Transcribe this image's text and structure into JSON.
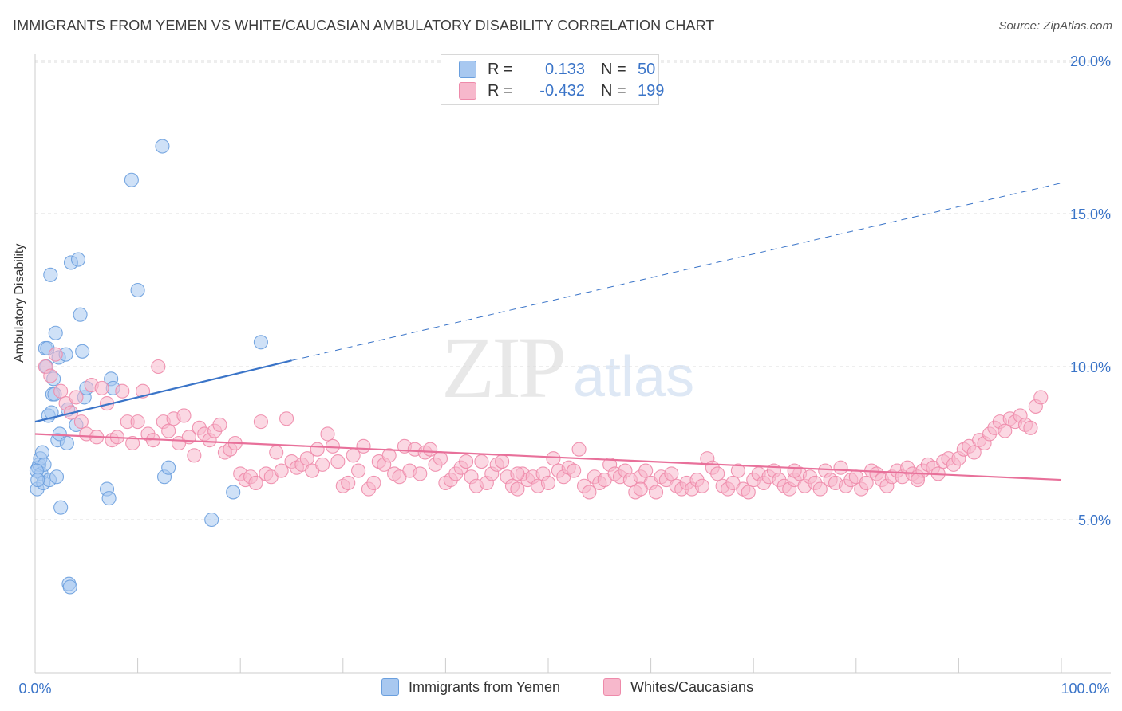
{
  "header": {
    "title": "IMMIGRANTS FROM YEMEN VS WHITE/CAUCASIAN AMBULATORY DISABILITY CORRELATION CHART",
    "source": "Source: ZipAtlas.com"
  },
  "watermark": {
    "zip": "ZIP",
    "atlas": "atlas"
  },
  "legend": {
    "rows": [
      {
        "r_label": "R =",
        "r_value": "0.133",
        "n_label": "N =",
        "n_value": "50",
        "color": "#a8c8f0"
      },
      {
        "r_label": "R =",
        "r_value": "-0.432",
        "n_label": "N =",
        "n_value": "199",
        "color": "#f7b8cc"
      }
    ]
  },
  "bottom_legend": {
    "items": [
      {
        "label": "Immigrants from Yemen",
        "color": "#a8c8f0"
      },
      {
        "label": "Whites/Caucasians",
        "color": "#f7b8cc"
      }
    ]
  },
  "chart_data": {
    "type": "scatter",
    "title": "IMMIGRANTS FROM YEMEN VS WHITE/CAUCASIAN AMBULATORY DISABILITY CORRELATION CHART",
    "xlabel": "",
    "ylabel": "Ambulatory Disability",
    "xlim": [
      0,
      100
    ],
    "ylim": [
      0,
      21
    ],
    "x_tick_labels": [
      "0.0%",
      "100.0%"
    ],
    "y_ticks": [
      5,
      10,
      15,
      20
    ],
    "y_tick_labels": [
      "5.0%",
      "10.0%",
      "15.0%",
      "20.0%"
    ],
    "grid": true,
    "legend_position": "top-center",
    "series": [
      {
        "name": "Immigrants from Yemen",
        "color": "#6a9fde",
        "fill": "#a8c8f0",
        "trend": {
          "x0": 0,
          "y0": 8.2,
          "x1": 25,
          "y1": 10.2,
          "dashed_to_x": 100,
          "dashed_to_y": 16.0,
          "color": "#3a74c8"
        },
        "points": [
          [
            0.2,
            6.0
          ],
          [
            0.3,
            6.7
          ],
          [
            0.4,
            6.8
          ],
          [
            0.5,
            7.0
          ],
          [
            0.6,
            6.5
          ],
          [
            0.7,
            7.2
          ],
          [
            0.8,
            6.2
          ],
          [
            0.9,
            6.8
          ],
          [
            1.0,
            10.6
          ],
          [
            1.1,
            10.0
          ],
          [
            1.2,
            10.6
          ],
          [
            1.3,
            8.4
          ],
          [
            1.4,
            6.3
          ],
          [
            1.5,
            13.0
          ],
          [
            1.6,
            8.5
          ],
          [
            1.7,
            9.1
          ],
          [
            1.8,
            9.6
          ],
          [
            1.9,
            9.1
          ],
          [
            2.0,
            11.1
          ],
          [
            2.1,
            6.4
          ],
          [
            2.2,
            7.6
          ],
          [
            2.3,
            10.3
          ],
          [
            2.4,
            7.8
          ],
          [
            2.5,
            5.4
          ],
          [
            3.0,
            10.4
          ],
          [
            3.1,
            7.5
          ],
          [
            3.2,
            8.6
          ],
          [
            3.3,
            2.9
          ],
          [
            3.4,
            2.8
          ],
          [
            3.5,
            13.4
          ],
          [
            4.0,
            8.1
          ],
          [
            4.2,
            13.5
          ],
          [
            4.4,
            11.7
          ],
          [
            4.6,
            10.5
          ],
          [
            4.8,
            9.0
          ],
          [
            5.0,
            9.3
          ],
          [
            7.0,
            6.0
          ],
          [
            7.2,
            5.7
          ],
          [
            7.4,
            9.6
          ],
          [
            7.6,
            9.3
          ],
          [
            9.4,
            16.1
          ],
          [
            10.0,
            12.5
          ],
          [
            12.4,
            17.2
          ],
          [
            12.6,
            6.4
          ],
          [
            13.0,
            6.7
          ],
          [
            17.2,
            5.0
          ],
          [
            19.3,
            5.9
          ],
          [
            22.0,
            10.8
          ],
          [
            0.15,
            6.6
          ],
          [
            0.25,
            6.3
          ]
        ]
      },
      {
        "name": "Whites/Caucasians",
        "color": "#ee8aaa",
        "fill": "#f7b8cc",
        "trend": {
          "x0": 0,
          "y0": 7.8,
          "x1": 100,
          "y1": 6.3,
          "color": "#e8709a"
        },
        "points": [
          [
            1.0,
            10.0
          ],
          [
            1.5,
            9.7
          ],
          [
            2.0,
            10.4
          ],
          [
            2.5,
            9.2
          ],
          [
            3.0,
            8.8
          ],
          [
            3.5,
            8.5
          ],
          [
            4.0,
            9.0
          ],
          [
            4.5,
            8.2
          ],
          [
            5.0,
            7.8
          ],
          [
            5.5,
            9.4
          ],
          [
            6.0,
            7.7
          ],
          [
            6.5,
            9.3
          ],
          [
            7.0,
            8.8
          ],
          [
            7.5,
            7.6
          ],
          [
            8.0,
            7.7
          ],
          [
            8.5,
            9.2
          ],
          [
            9.0,
            8.2
          ],
          [
            9.5,
            7.5
          ],
          [
            10.0,
            8.2
          ],
          [
            10.5,
            9.2
          ],
          [
            11.0,
            7.8
          ],
          [
            11.5,
            7.6
          ],
          [
            12.0,
            10.0
          ],
          [
            12.5,
            8.2
          ],
          [
            13.0,
            7.9
          ],
          [
            13.5,
            8.3
          ],
          [
            14.0,
            7.5
          ],
          [
            14.5,
            8.4
          ],
          [
            15.0,
            7.7
          ],
          [
            15.5,
            7.1
          ],
          [
            16.0,
            8.0
          ],
          [
            16.5,
            7.8
          ],
          [
            17.0,
            7.6
          ],
          [
            17.5,
            7.9
          ],
          [
            18.0,
            8.1
          ],
          [
            18.5,
            7.2
          ],
          [
            19.0,
            7.3
          ],
          [
            19.5,
            7.5
          ],
          [
            20.0,
            6.5
          ],
          [
            20.5,
            6.3
          ],
          [
            21.0,
            6.4
          ],
          [
            21.5,
            6.2
          ],
          [
            22.0,
            8.2
          ],
          [
            22.5,
            6.5
          ],
          [
            23.0,
            6.4
          ],
          [
            23.5,
            7.2
          ],
          [
            24.0,
            6.6
          ],
          [
            24.5,
            8.3
          ],
          [
            25.0,
            6.9
          ],
          [
            25.5,
            6.7
          ],
          [
            26.0,
            6.8
          ],
          [
            26.5,
            7.0
          ],
          [
            27.0,
            6.6
          ],
          [
            27.5,
            7.3
          ],
          [
            28.0,
            6.8
          ],
          [
            28.5,
            7.8
          ],
          [
            29.0,
            7.4
          ],
          [
            29.5,
            6.9
          ],
          [
            30.0,
            6.1
          ],
          [
            30.5,
            6.2
          ],
          [
            31.0,
            7.1
          ],
          [
            31.5,
            6.6
          ],
          [
            32.0,
            7.4
          ],
          [
            32.5,
            6.0
          ],
          [
            33.0,
            6.2
          ],
          [
            33.5,
            6.9
          ],
          [
            34.0,
            6.8
          ],
          [
            34.5,
            7.1
          ],
          [
            35.0,
            6.5
          ],
          [
            35.5,
            6.4
          ],
          [
            36.0,
            7.4
          ],
          [
            36.5,
            6.6
          ],
          [
            37.0,
            7.3
          ],
          [
            37.5,
            6.5
          ],
          [
            38.0,
            7.2
          ],
          [
            38.5,
            7.3
          ],
          [
            39.0,
            6.8
          ],
          [
            39.5,
            7.0
          ],
          [
            40.0,
            6.2
          ],
          [
            40.5,
            6.3
          ],
          [
            41.0,
            6.5
          ],
          [
            41.5,
            6.7
          ],
          [
            42.0,
            6.9
          ],
          [
            42.5,
            6.4
          ],
          [
            43.0,
            6.1
          ],
          [
            43.5,
            6.9
          ],
          [
            44.0,
            6.2
          ],
          [
            44.5,
            6.5
          ],
          [
            45.0,
            6.8
          ],
          [
            45.5,
            6.9
          ],
          [
            46.0,
            6.4
          ],
          [
            46.5,
            6.1
          ],
          [
            47.0,
            6.0
          ],
          [
            47.5,
            6.5
          ],
          [
            48.0,
            6.3
          ],
          [
            48.5,
            6.4
          ],
          [
            49.0,
            6.1
          ],
          [
            49.5,
            6.5
          ],
          [
            50.0,
            6.2
          ],
          [
            50.5,
            7.0
          ],
          [
            51.0,
            6.6
          ],
          [
            51.5,
            6.4
          ],
          [
            52.0,
            6.7
          ],
          [
            52.5,
            6.6
          ],
          [
            53.0,
            7.3
          ],
          [
            53.5,
            6.1
          ],
          [
            54.0,
            5.9
          ],
          [
            54.5,
            6.4
          ],
          [
            55.0,
            6.2
          ],
          [
            55.5,
            6.3
          ],
          [
            56.0,
            6.8
          ],
          [
            56.5,
            6.5
          ],
          [
            57.0,
            6.4
          ],
          [
            57.5,
            6.6
          ],
          [
            58.0,
            6.3
          ],
          [
            58.5,
            5.9
          ],
          [
            59.0,
            6.4
          ],
          [
            59.5,
            6.6
          ],
          [
            60.0,
            6.2
          ],
          [
            60.5,
            5.9
          ],
          [
            61.0,
            6.4
          ],
          [
            61.5,
            6.3
          ],
          [
            62.0,
            6.5
          ],
          [
            62.5,
            6.1
          ],
          [
            63.0,
            6.0
          ],
          [
            63.5,
            6.2
          ],
          [
            64.0,
            6.0
          ],
          [
            64.5,
            6.3
          ],
          [
            65.0,
            6.1
          ],
          [
            65.5,
            7.0
          ],
          [
            66.0,
            6.7
          ],
          [
            66.5,
            6.5
          ],
          [
            67.0,
            6.1
          ],
          [
            67.5,
            6.0
          ],
          [
            68.0,
            6.2
          ],
          [
            68.5,
            6.6
          ],
          [
            69.0,
            6.0
          ],
          [
            69.5,
            5.9
          ],
          [
            70.0,
            6.3
          ],
          [
            70.5,
            6.5
          ],
          [
            71.0,
            6.2
          ],
          [
            71.5,
            6.4
          ],
          [
            72.0,
            6.6
          ],
          [
            72.5,
            6.3
          ],
          [
            73.0,
            6.1
          ],
          [
            73.5,
            6.0
          ],
          [
            74.0,
            6.3
          ],
          [
            74.5,
            6.5
          ],
          [
            75.0,
            6.1
          ],
          [
            75.5,
            6.4
          ],
          [
            76.0,
            6.2
          ],
          [
            76.5,
            6.0
          ],
          [
            77.0,
            6.6
          ],
          [
            77.5,
            6.3
          ],
          [
            78.0,
            6.2
          ],
          [
            78.5,
            6.7
          ],
          [
            79.0,
            6.1
          ],
          [
            79.5,
            6.3
          ],
          [
            80.0,
            6.4
          ],
          [
            80.5,
            6.0
          ],
          [
            81.0,
            6.2
          ],
          [
            81.5,
            6.6
          ],
          [
            82.0,
            6.5
          ],
          [
            82.5,
            6.3
          ],
          [
            83.0,
            6.1
          ],
          [
            83.5,
            6.4
          ],
          [
            84.0,
            6.6
          ],
          [
            84.5,
            6.4
          ],
          [
            85.0,
            6.7
          ],
          [
            85.5,
            6.5
          ],
          [
            86.0,
            6.4
          ],
          [
            86.5,
            6.6
          ],
          [
            87.0,
            6.8
          ],
          [
            87.5,
            6.7
          ],
          [
            88.0,
            6.5
          ],
          [
            88.5,
            6.9
          ],
          [
            89.0,
            7.0
          ],
          [
            89.5,
            6.8
          ],
          [
            90.0,
            7.0
          ],
          [
            90.5,
            7.3
          ],
          [
            91.0,
            7.4
          ],
          [
            91.5,
            7.2
          ],
          [
            92.0,
            7.6
          ],
          [
            92.5,
            7.5
          ],
          [
            93.0,
            7.8
          ],
          [
            93.5,
            8.0
          ],
          [
            94.0,
            8.2
          ],
          [
            94.5,
            7.9
          ],
          [
            95.0,
            8.3
          ],
          [
            95.5,
            8.2
          ],
          [
            96.0,
            8.4
          ],
          [
            96.5,
            8.1
          ],
          [
            97.0,
            8.0
          ],
          [
            97.5,
            8.7
          ],
          [
            98.0,
            9.0
          ],
          [
            59.0,
            6.0
          ],
          [
            74.0,
            6.6
          ],
          [
            86.0,
            6.3
          ],
          [
            47.0,
            6.5
          ]
        ]
      }
    ]
  }
}
